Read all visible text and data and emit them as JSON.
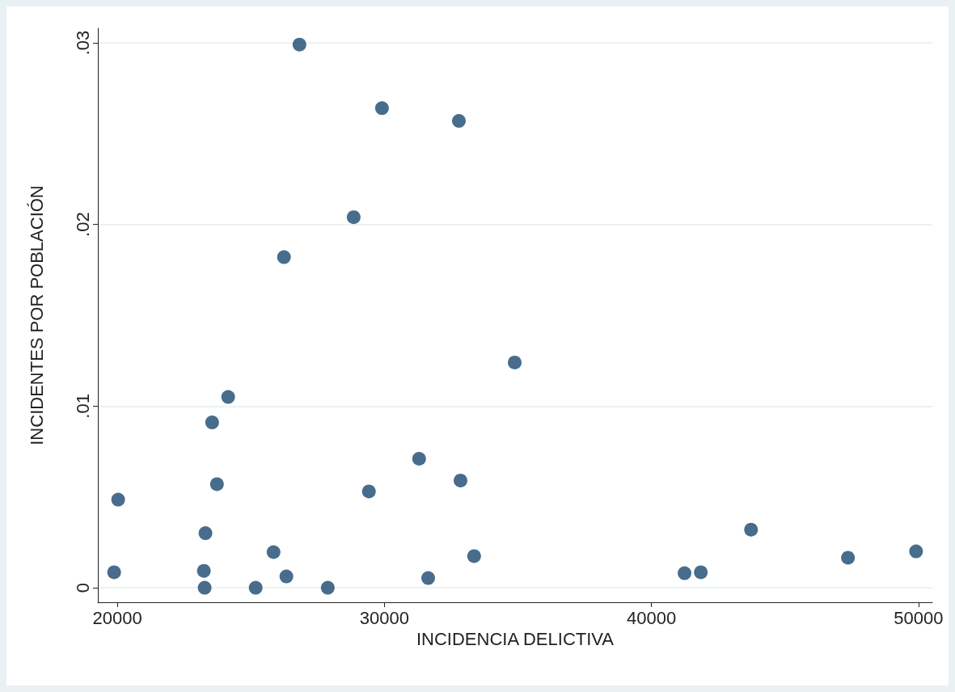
{
  "chart_data": {
    "type": "scatter",
    "xlabel": "INCIDENCIA DELICTIVA",
    "ylabel": "INCIDENTES POR POBLACIÓN",
    "marker": "circle",
    "grid": "y",
    "x": [
      19880,
      20030,
      23300,
      23240,
      23270,
      23550,
      23730,
      24150,
      25180,
      25850,
      26240,
      26330,
      26820,
      27880,
      28850,
      29420,
      29910,
      31300,
      31640,
      32790,
      32850,
      33360,
      34880,
      41240,
      41850,
      43730,
      47360,
      49910
    ],
    "series": [
      {
        "color": "#1a476f",
        "values": [
          0.00085,
          0.00485,
          0.003,
          0.00093,
          0,
          0.0091,
          0.0057,
          0.0105,
          0,
          0.00196,
          0.0182,
          0.00062,
          0.0299,
          0,
          0.0204,
          0.0053,
          0.0264,
          0.0071,
          0.00053,
          0.0257,
          0.0059,
          0.00174,
          0.0124,
          0.0008,
          0.00085,
          0.0032,
          0.00165,
          0.002
        ]
      }
    ],
    "xlim": [
      19270,
      50520
    ],
    "xticks": [
      20000,
      30000,
      40000,
      50000
    ],
    "ylim": [
      -0.0008,
      0.0308
    ],
    "yticks": [
      0,
      {
        "value": 0.01,
        "label": ".01"
      },
      {
        "value": 0.02,
        "label": ".02"
      },
      {
        "value": 0.03,
        "label": ".03"
      }
    ]
  }
}
